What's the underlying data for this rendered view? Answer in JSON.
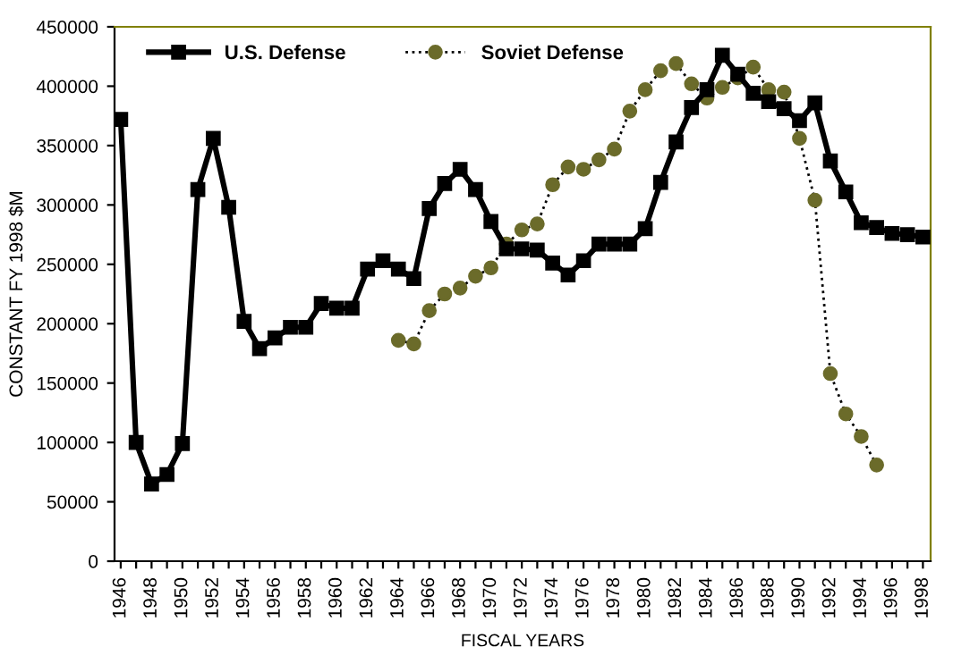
{
  "chart_data": {
    "type": "line",
    "categories": [
      "1946",
      null,
      "1948",
      null,
      "1950",
      null,
      "1952",
      null,
      "1954",
      null,
      "1956",
      null,
      "1958",
      null,
      "1960",
      null,
      "1962",
      null,
      "1964",
      null,
      "1966",
      null,
      "1968",
      null,
      "1970",
      null,
      "1972",
      null,
      "1974",
      null,
      "1976",
      null,
      "1978",
      null,
      "1980",
      null,
      "1982",
      null,
      "1984",
      null,
      "1986",
      null,
      "1988",
      null,
      "1990",
      null,
      "1992",
      null,
      "1994",
      null,
      "1996",
      null,
      "1998"
    ],
    "series": [
      {
        "name": "U.S. Defense",
        "color": "#000000",
        "marker": "square",
        "line_style": "solid",
        "values": [
          372000,
          100000,
          65000,
          73000,
          99000,
          313000,
          356000,
          298000,
          202000,
          179000,
          188000,
          197000,
          197000,
          217000,
          213000,
          213000,
          246000,
          253000,
          246000,
          238000,
          297000,
          318000,
          330000,
          313000,
          286000,
          263000,
          263000,
          262000,
          251000,
          241000,
          253000,
          267000,
          267000,
          267000,
          280000,
          319000,
          353000,
          382000,
          397000,
          426000,
          410000,
          394000,
          387000,
          381000,
          371000,
          386000,
          337000,
          311000,
          285000,
          281000,
          276000,
          275000,
          273000
        ]
      },
      {
        "name": "Soviet Defense",
        "color": "#6b6b2a",
        "marker": "circle",
        "line_style": "dotted",
        "values": [
          null,
          null,
          null,
          null,
          null,
          null,
          null,
          null,
          null,
          null,
          null,
          null,
          null,
          null,
          null,
          null,
          null,
          null,
          186000,
          183000,
          211000,
          225000,
          230000,
          240000,
          247000,
          267000,
          279000,
          284000,
          317000,
          332000,
          330000,
          338000,
          347000,
          379000,
          397000,
          413000,
          419000,
          402000,
          390000,
          399000,
          407000,
          416000,
          397000,
          395000,
          356000,
          304000,
          158000,
          124000,
          105000,
          81000,
          null,
          null,
          null
        ]
      }
    ],
    "xlabel": "FISCAL YEARS",
    "ylabel": "CONSTANT FY 1998 $M",
    "ylim": [
      0,
      450000
    ],
    "yticks": [
      0,
      50000,
      100000,
      150000,
      200000,
      250000,
      300000,
      350000,
      400000,
      450000
    ],
    "grid": false,
    "legend": "top left"
  }
}
